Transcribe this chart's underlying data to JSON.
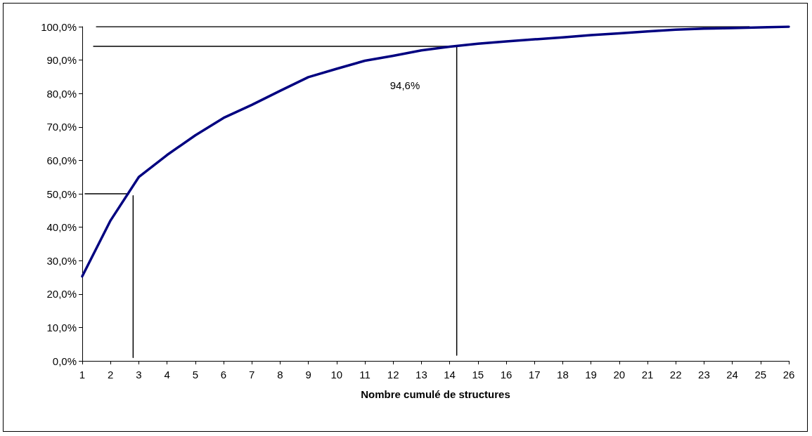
{
  "chart_data": {
    "type": "line",
    "xlabel": "Nombre cumulé de structures",
    "x": [
      1,
      2,
      3,
      4,
      5,
      6,
      7,
      8,
      9,
      10,
      11,
      12,
      13,
      14,
      15,
      16,
      17,
      18,
      19,
      20,
      21,
      22,
      23,
      24,
      25,
      26
    ],
    "series": [
      {
        "color": "#000080",
        "values": [
          25.3,
          42.0,
          55.0,
          61.6,
          67.5,
          72.7,
          76.6,
          80.8,
          84.9,
          87.4,
          89.8,
          91.3,
          92.9,
          94.0,
          94.9,
          95.6,
          96.2,
          96.8,
          97.5,
          98.0,
          98.6,
          99.1,
          99.4,
          99.6,
          99.8,
          100.0
        ]
      },
      {
        "type": "line",
        "color": "#000000",
        "x": [
          1.5,
          24.6
        ],
        "values": [
          100,
          100
        ]
      },
      {
        "type": "line",
        "color": "#000000",
        "x": [
          1.4,
          14.25
        ],
        "values": [
          94.1,
          94.1
        ]
      },
      {
        "type": "line",
        "color": "#000000",
        "x": [
          14.25,
          14.25
        ],
        "values": [
          1.7,
          94.1
        ]
      },
      {
        "type": "line",
        "color": "#000000",
        "x": [
          1.1,
          2.65
        ],
        "values": [
          50,
          50
        ]
      },
      {
        "type": "line",
        "color": "#000000",
        "x": [
          2.8,
          2.8
        ],
        "values": [
          1,
          49.4
        ]
      }
    ],
    "xlim": [
      1,
      26
    ],
    "xticks": [
      1,
      2,
      3,
      4,
      5,
      6,
      7,
      8,
      9,
      10,
      11,
      12,
      13,
      14,
      15,
      16,
      17,
      18,
      19,
      20,
      21,
      22,
      23,
      24,
      25,
      26
    ],
    "ylim": [
      0,
      100
    ],
    "yticks": [
      {
        "value": 0,
        "label": "0,0%"
      },
      {
        "value": 10,
        "label": "10,0%"
      },
      {
        "value": 20,
        "label": "20,0%"
      },
      {
        "value": 30,
        "label": "30,0%"
      },
      {
        "value": 40,
        "label": "40,0%"
      },
      {
        "value": 50,
        "label": "50,0%"
      },
      {
        "value": 60,
        "label": "60,0%"
      },
      {
        "value": 70,
        "label": "70,0%"
      },
      {
        "value": 80,
        "label": "80,0%"
      },
      {
        "value": 90,
        "label": "90,0%"
      },
      {
        "value": 100,
        "label": "100,0%"
      }
    ],
    "annotations": [
      "94,6%"
    ],
    "grid": false,
    "marker": "none",
    "line_style": "solid"
  }
}
